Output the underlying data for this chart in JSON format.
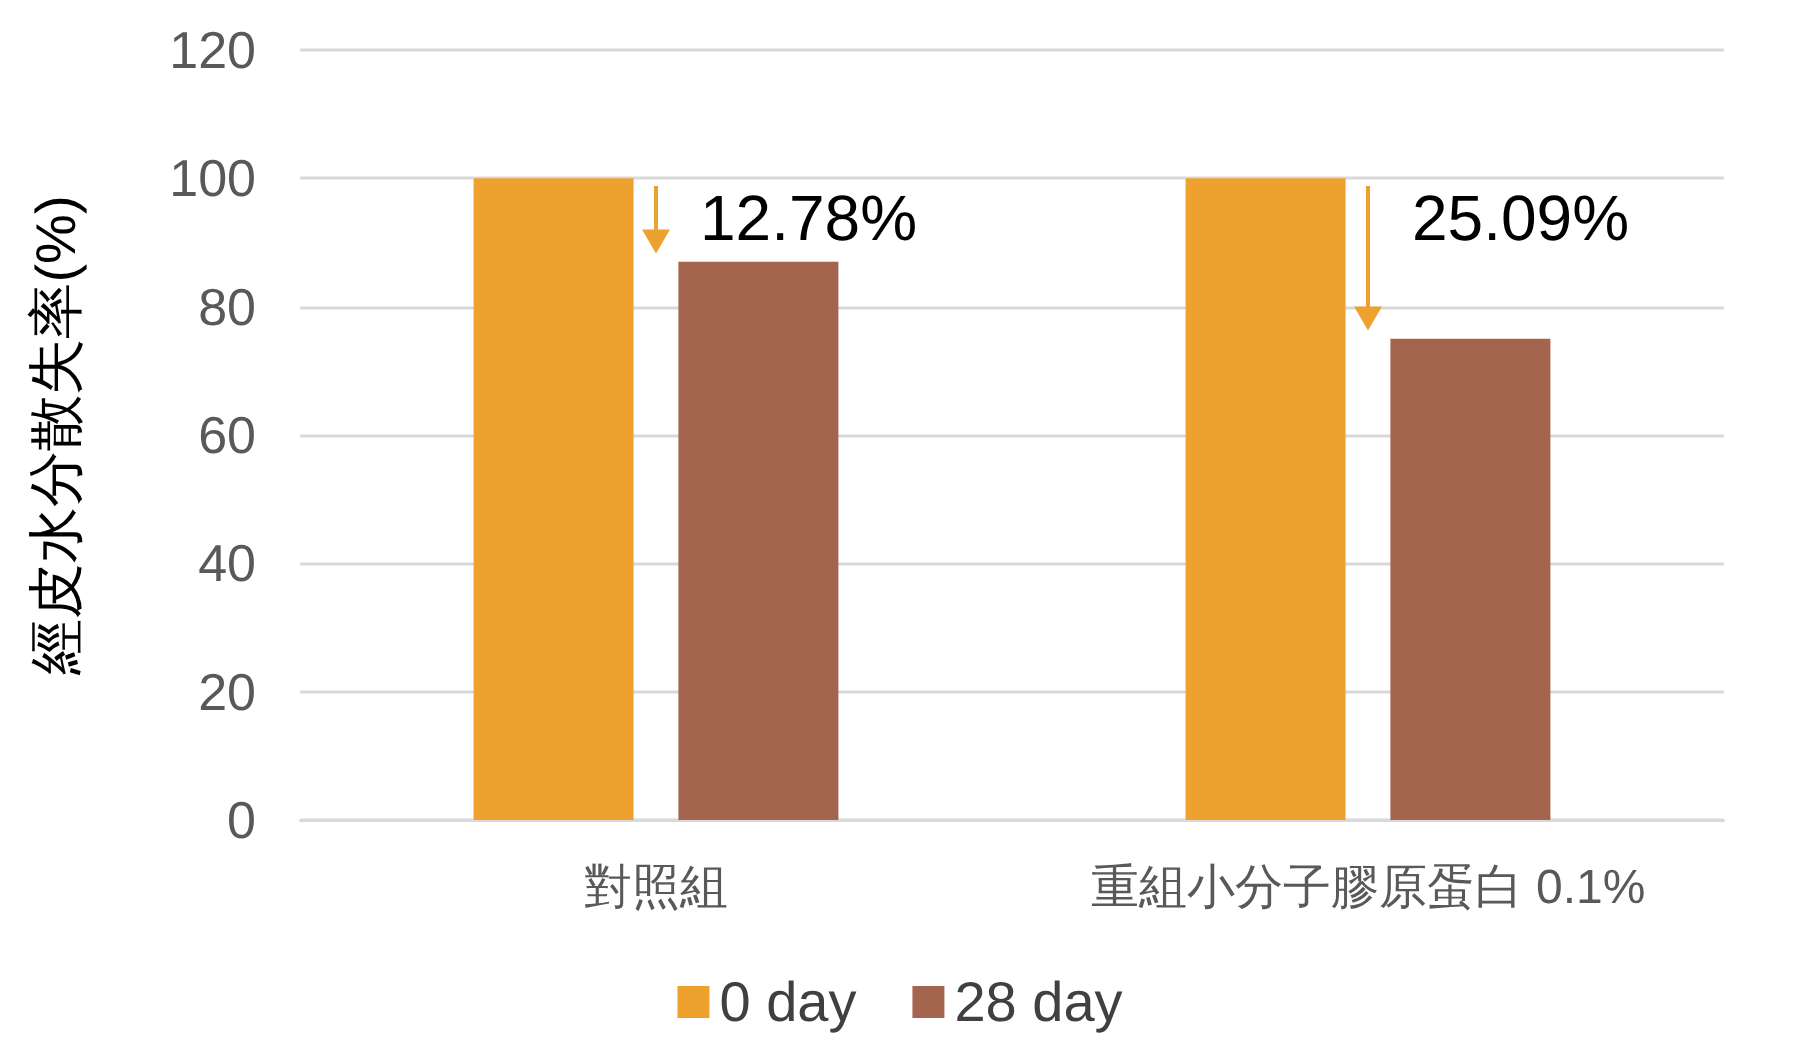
{
  "chart_data": {
    "type": "bar",
    "ylabel": "經皮水分散失率(%)",
    "categories": [
      "對照組",
      "重組小分子膠原蛋白 0.1%"
    ],
    "series": [
      {
        "name": "0 day",
        "color": "#eda22f",
        "values": [
          100,
          100
        ]
      },
      {
        "name": "28 day",
        "color": "#a5644e",
        "values": [
          87,
          75
        ]
      }
    ],
    "ylim": [
      0,
      120
    ],
    "yticks": [
      0,
      20,
      40,
      60,
      80,
      100,
      120
    ],
    "grid": "y",
    "legend": "bottom",
    "annotations": [
      "12.78%",
      "25.09%"
    ]
  }
}
